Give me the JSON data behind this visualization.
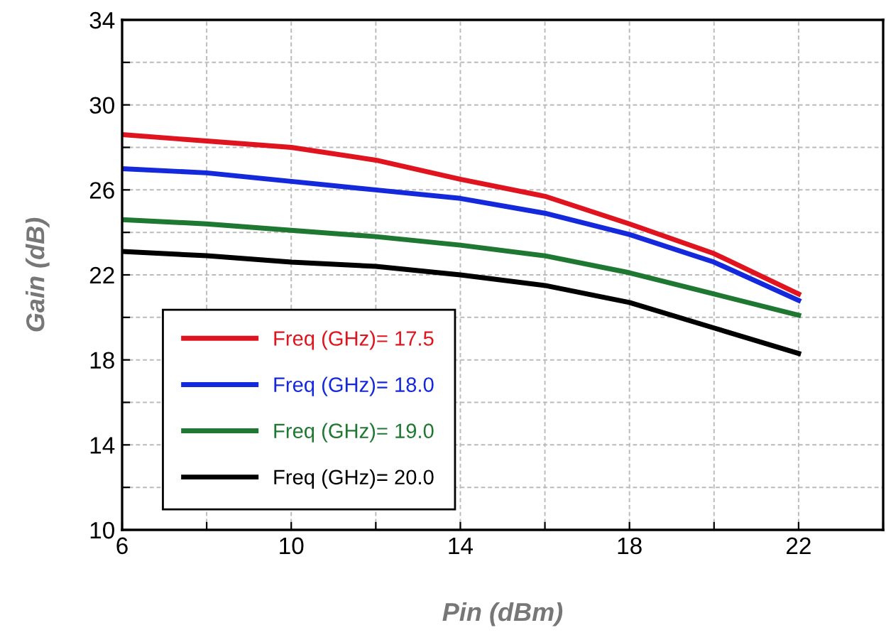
{
  "chart_data": {
    "type": "line",
    "xlabel": "Pin (dBm)",
    "ylabel": "Gain (dB)",
    "x": [
      6,
      8,
      10,
      12,
      14,
      16,
      18,
      20,
      22
    ],
    "series": [
      {
        "name": "Freq (GHz)= 17.5",
        "color": "#e0141e",
        "values": [
          28.6,
          28.3,
          28.0,
          27.4,
          26.5,
          25.7,
          24.4,
          23.0,
          21.1
        ]
      },
      {
        "name": "Freq (GHz)= 18.0",
        "color": "#1428dc",
        "values": [
          27.0,
          26.8,
          26.4,
          26.0,
          25.6,
          24.9,
          23.9,
          22.6,
          20.8
        ]
      },
      {
        "name": "Freq (GHz)= 19.0",
        "color": "#1e7832",
        "values": [
          24.6,
          24.4,
          24.1,
          23.8,
          23.4,
          22.9,
          22.1,
          21.1,
          20.1
        ]
      },
      {
        "name": "Freq (GHz)= 20.0",
        "color": "#000000",
        "values": [
          23.1,
          22.9,
          22.6,
          22.4,
          22.0,
          21.5,
          20.7,
          19.5,
          18.3
        ]
      }
    ],
    "xlim": [
      6,
      24
    ],
    "xticks": [
      6,
      {
        "value": 8,
        "label": null
      },
      10,
      {
        "value": 12,
        "label": null
      },
      14,
      {
        "value": 16,
        "label": null
      },
      18,
      {
        "value": 20,
        "label": null
      },
      22,
      {
        "value": 24,
        "label": null
      }
    ],
    "ylim": [
      10,
      34
    ],
    "yticks": [
      10,
      {
        "value": 12,
        "label": null
      },
      14,
      {
        "value": 16,
        "label": null
      },
      18,
      {
        "value": 20,
        "label": null
      },
      22,
      {
        "value": 24,
        "label": null
      },
      26,
      {
        "value": 28,
        "label": null
      },
      30,
      {
        "value": 32,
        "label": null
      },
      34
    ],
    "grid": true,
    "legend": "bottom left",
    "marker": "none",
    "line_style": "solid"
  }
}
